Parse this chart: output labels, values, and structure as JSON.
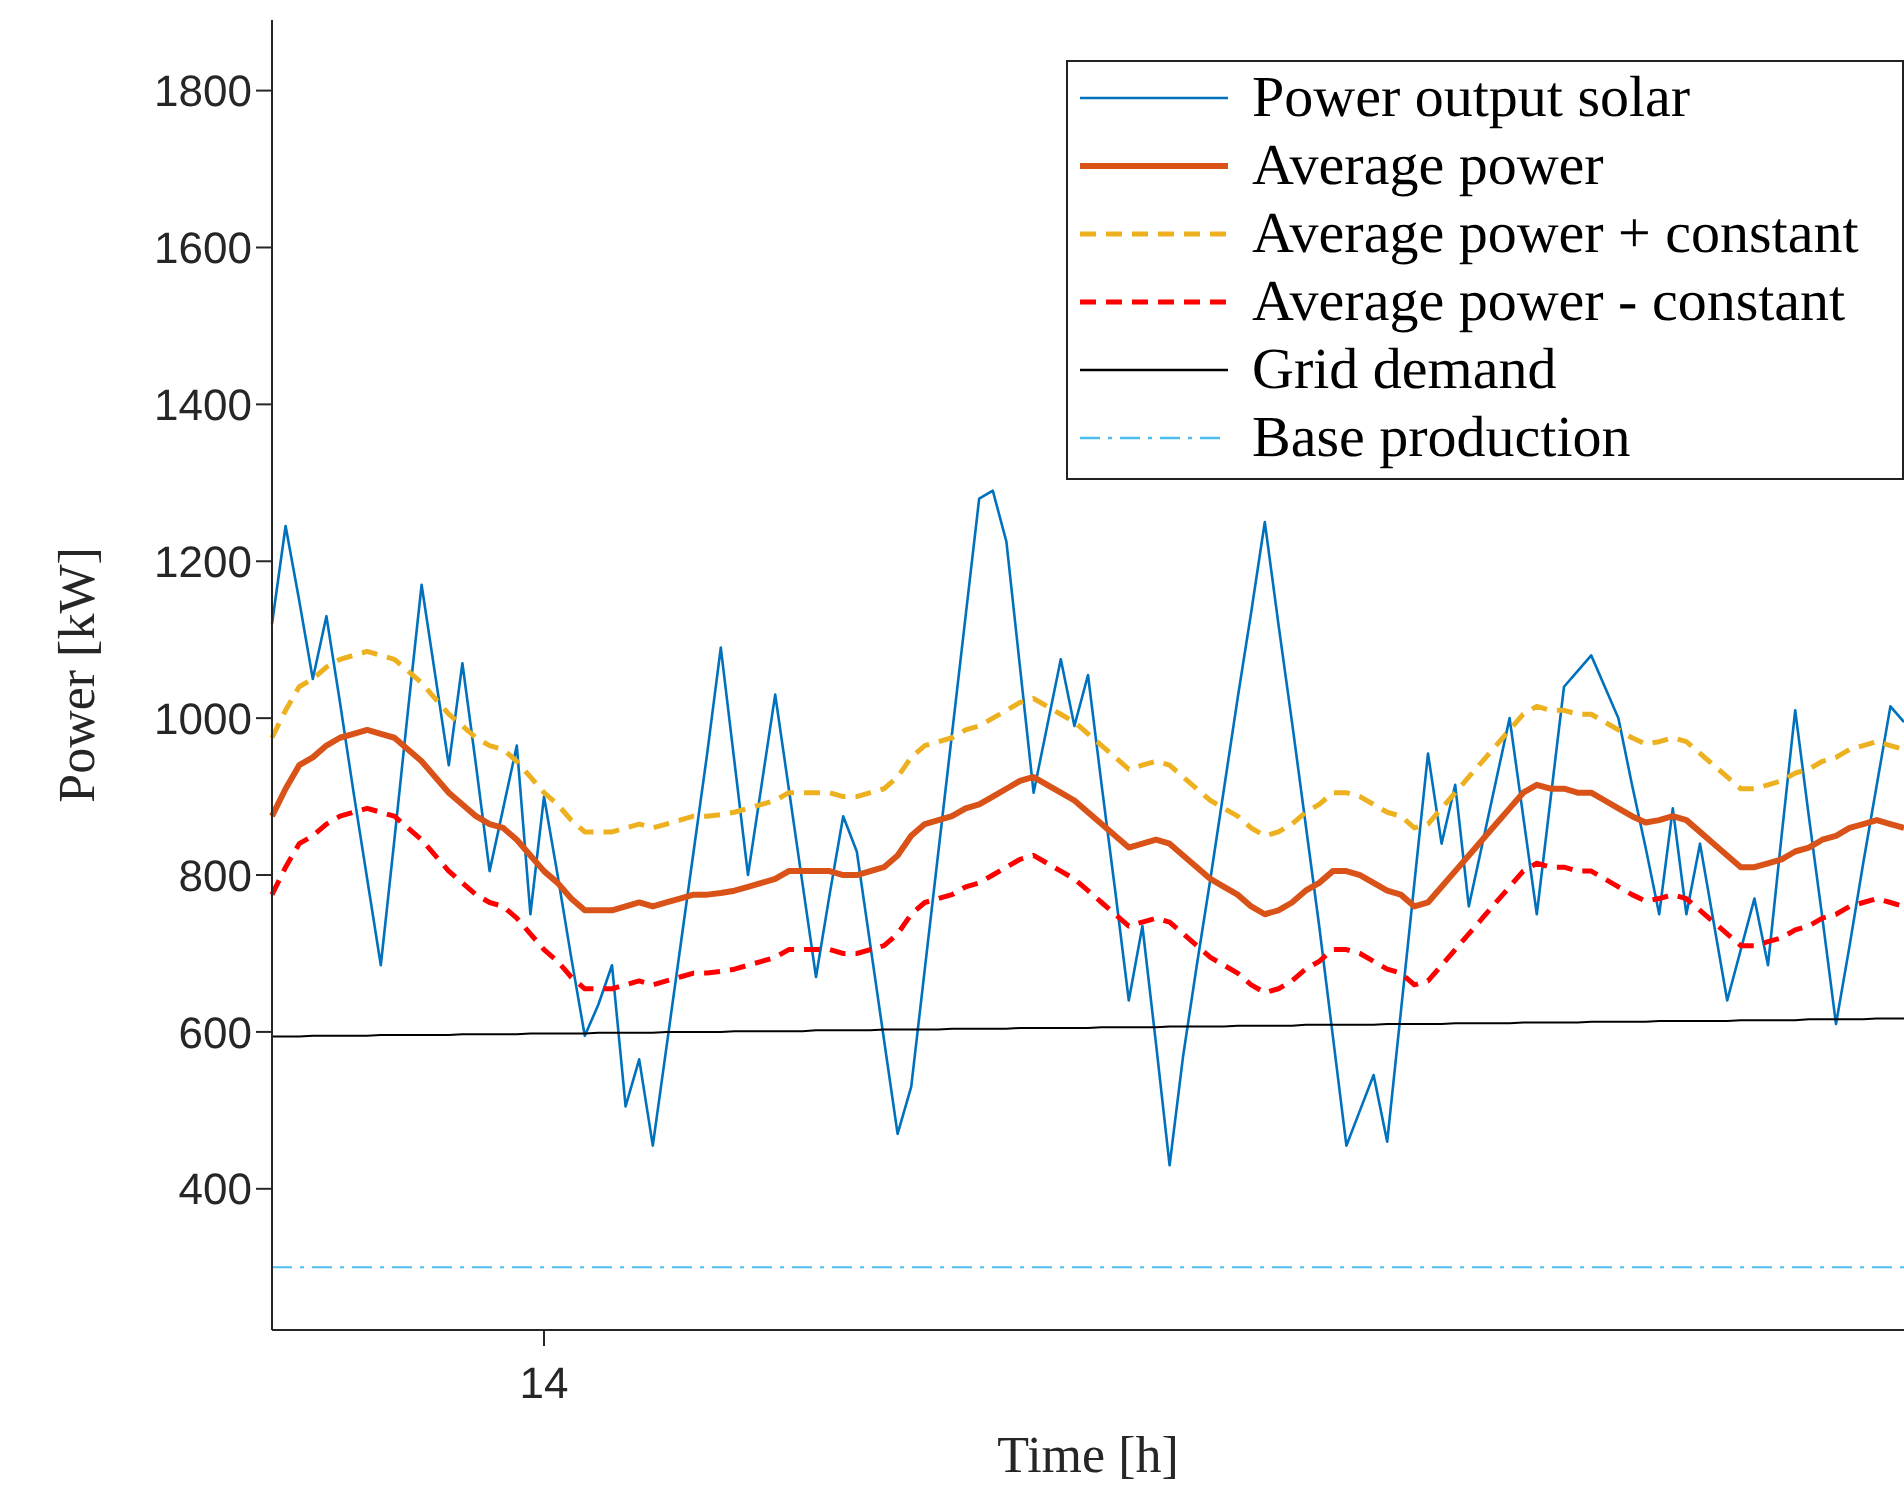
{
  "chart_data": {
    "type": "line",
    "xlabel": "Time [h]",
    "ylabel": "Power [kW]",
    "categories": [
      null,
      null,
      null,
      null,
      null,
      null,
      null,
      null,
      null,
      null,
      null,
      null,
      null,
      null,
      null,
      null,
      null,
      null,
      null,
      null,
      "14",
      null,
      null,
      null,
      null,
      null,
      null,
      null,
      null,
      null,
      null,
      null,
      null,
      null,
      null,
      null,
      null,
      null,
      null,
      null,
      null,
      null,
      null,
      null,
      null,
      null,
      null,
      null,
      null,
      null,
      null,
      null,
      null,
      null,
      null,
      null,
      null,
      null,
      null,
      null,
      null,
      null,
      null,
      null,
      null,
      null,
      null,
      null,
      null,
      null,
      null,
      null,
      null,
      null,
      null,
      null,
      null,
      null,
      null,
      null,
      null,
      null,
      null,
      null,
      null,
      null,
      null,
      null,
      null,
      null,
      null,
      null,
      null,
      null,
      null,
      null,
      null,
      null,
      null,
      null,
      null,
      null,
      null,
      null,
      null,
      null,
      null,
      null,
      null,
      null,
      null,
      null,
      null,
      null,
      null,
      null,
      null,
      null,
      null,
      null,
      null
    ],
    "ylim": [
      220,
      1890
    ],
    "yticks": [
      400,
      600,
      800,
      1000,
      1200,
      1400,
      1600,
      1800
    ],
    "grid": false,
    "legend": "top right",
    "marker": "none",
    "series": [
      {
        "name": "Power output solar",
        "color": "#0072bd",
        "line_style": "solid",
        "values": [
          1120,
          1245,
          1150,
          1050,
          1130,
          1020,
          905,
          795,
          685,
          845,
          1010,
          1170,
          1055,
          940,
          1070,
          940,
          805,
          885,
          965,
          750,
          900,
          800,
          695,
          595,
          635,
          685,
          505,
          565,
          455,
          580,
          705,
          830,
          955,
          1090,
          945,
          800,
          915,
          1030,
          910,
          790,
          670,
          775,
          875,
          830,
          710,
          590,
          470,
          530,
          680,
          830,
          980,
          1130,
          1280,
          1290,
          1225,
          1065,
          905,
          990,
          1075,
          990,
          1055,
          915,
          780,
          640,
          735,
          585,
          430,
          570,
          685,
          795,
          910,
          1025,
          1135,
          1250,
          1120,
          995,
          865,
          735,
          595,
          455,
          500,
          545,
          460,
          625,
          790,
          955,
          840,
          915,
          760,
          840,
          920,
          1000,
          875,
          750,
          895,
          1040,
          1060,
          1080,
          1040,
          1000,
          915,
          835,
          750,
          885,
          750,
          840,
          740,
          640,
          705,
          770,
          685,
          850,
          1010,
          875,
          745,
          610,
          710,
          815,
          915,
          1015,
          995
        ]
      },
      {
        "name": "Average power",
        "color": "#d95319",
        "line_style": "solid",
        "values": [
          875,
          910,
          940,
          950,
          965,
          975,
          980,
          985,
          980,
          975,
          960,
          945,
          925,
          905,
          890,
          875,
          865,
          860,
          845,
          825,
          805,
          790,
          770,
          755,
          755,
          755,
          760,
          765,
          760,
          765,
          770,
          775,
          775,
          777,
          780,
          785,
          790,
          795,
          805,
          805,
          805,
          805,
          800,
          800,
          805,
          810,
          825,
          850,
          865,
          870,
          875,
          885,
          890,
          900,
          910,
          920,
          925,
          915,
          905,
          895,
          880,
          865,
          850,
          835,
          840,
          845,
          840,
          825,
          810,
          795,
          785,
          775,
          760,
          750,
          755,
          765,
          780,
          790,
          805,
          805,
          800,
          790,
          780,
          775,
          760,
          765,
          785,
          805,
          825,
          845,
          865,
          885,
          905,
          915,
          910,
          910,
          905,
          905,
          895,
          885,
          875,
          867,
          870,
          875,
          870,
          855,
          840,
          825,
          810,
          810,
          815,
          820,
          830,
          835,
          845,
          850,
          860,
          865,
          870,
          865,
          860
        ]
      },
      {
        "name": "Average power + constant",
        "color": "#edb120",
        "line_style": "dashed",
        "values": [
          975,
          1010,
          1040,
          1050,
          1065,
          1075,
          1080,
          1085,
          1080,
          1075,
          1060,
          1045,
          1025,
          1005,
          990,
          975,
          965,
          960,
          945,
          925,
          905,
          890,
          870,
          855,
          855,
          855,
          860,
          865,
          860,
          865,
          870,
          875,
          875,
          877,
          880,
          885,
          890,
          895,
          905,
          905,
          905,
          905,
          900,
          900,
          905,
          910,
          925,
          950,
          965,
          970,
          975,
          985,
          990,
          1000,
          1010,
          1020,
          1025,
          1015,
          1005,
          995,
          980,
          965,
          950,
          935,
          940,
          945,
          940,
          925,
          910,
          895,
          885,
          875,
          860,
          850,
          855,
          865,
          880,
          890,
          905,
          905,
          900,
          890,
          880,
          875,
          860,
          865,
          885,
          905,
          925,
          945,
          965,
          985,
          1005,
          1015,
          1010,
          1010,
          1005,
          1005,
          995,
          985,
          975,
          967,
          970,
          975,
          970,
          955,
          940,
          925,
          910,
          910,
          915,
          920,
          930,
          935,
          945,
          950,
          960,
          965,
          970,
          965,
          960
        ]
      },
      {
        "name": "Average power - constant",
        "color": "#ff0000",
        "line_style": "dashed",
        "values": [
          775,
          810,
          840,
          850,
          865,
          875,
          880,
          885,
          880,
          875,
          860,
          845,
          825,
          805,
          790,
          775,
          765,
          760,
          745,
          725,
          705,
          690,
          670,
          655,
          655,
          655,
          660,
          665,
          660,
          665,
          670,
          675,
          675,
          677,
          680,
          685,
          690,
          695,
          705,
          705,
          705,
          705,
          700,
          700,
          705,
          710,
          725,
          750,
          765,
          770,
          775,
          785,
          790,
          800,
          810,
          820,
          825,
          815,
          805,
          795,
          780,
          765,
          750,
          735,
          740,
          745,
          740,
          725,
          710,
          695,
          685,
          675,
          660,
          650,
          655,
          665,
          680,
          690,
          705,
          705,
          700,
          690,
          680,
          675,
          660,
          665,
          685,
          705,
          725,
          745,
          765,
          785,
          805,
          815,
          810,
          810,
          805,
          805,
          795,
          785,
          775,
          767,
          770,
          775,
          770,
          755,
          740,
          725,
          710,
          710,
          715,
          720,
          730,
          735,
          745,
          750,
          760,
          765,
          770,
          765,
          760
        ]
      },
      {
        "name": "Grid demand",
        "color": "#000000",
        "line_style": "solid",
        "values": [
          594,
          594,
          594,
          595,
          595,
          595,
          595,
          595,
          596,
          596,
          596,
          596,
          596,
          596,
          597,
          597,
          597,
          597,
          597,
          598,
          598,
          598,
          598,
          598,
          599,
          599,
          599,
          599,
          599,
          600,
          600,
          600,
          600,
          600,
          601,
          601,
          601,
          601,
          601,
          601,
          602,
          602,
          602,
          602,
          602,
          603,
          603,
          603,
          603,
          603,
          604,
          604,
          604,
          604,
          604,
          605,
          605,
          605,
          605,
          605,
          605,
          606,
          606,
          606,
          606,
          606,
          607,
          607,
          607,
          607,
          607,
          608,
          608,
          608,
          608,
          608,
          609,
          609,
          609,
          609,
          609,
          609,
          610,
          610,
          610,
          610,
          610,
          611,
          611,
          611,
          611,
          611,
          612,
          612,
          612,
          612,
          612,
          613,
          613,
          613,
          613,
          613,
          614,
          614,
          614,
          614,
          614,
          614,
          615,
          615,
          615,
          615,
          615,
          616,
          616,
          616,
          616,
          616,
          617,
          617,
          617
        ]
      },
      {
        "name": "Base production",
        "color": "#4dbeee",
        "line_style": "dashdot",
        "values": [
          300,
          300,
          300,
          300,
          300,
          300,
          300,
          300,
          300,
          300,
          300,
          300,
          300,
          300,
          300,
          300,
          300,
          300,
          300,
          300,
          300,
          300,
          300,
          300,
          300,
          300,
          300,
          300,
          300,
          300,
          300,
          300,
          300,
          300,
          300,
          300,
          300,
          300,
          300,
          300,
          300,
          300,
          300,
          300,
          300,
          300,
          300,
          300,
          300,
          300,
          300,
          300,
          300,
          300,
          300,
          300,
          300,
          300,
          300,
          300,
          300,
          300,
          300,
          300,
          300,
          300,
          300,
          300,
          300,
          300,
          300,
          300,
          300,
          300,
          300,
          300,
          300,
          300,
          300,
          300,
          300,
          300,
          300,
          300,
          300,
          300,
          300,
          300,
          300,
          300,
          300,
          300,
          300,
          300,
          300,
          300,
          300,
          300,
          300,
          300,
          300,
          300,
          300,
          300,
          300,
          300,
          300,
          300,
          300,
          300,
          300,
          300,
          300,
          300,
          300,
          300,
          300,
          300,
          300,
          300,
          300
        ]
      }
    ]
  }
}
